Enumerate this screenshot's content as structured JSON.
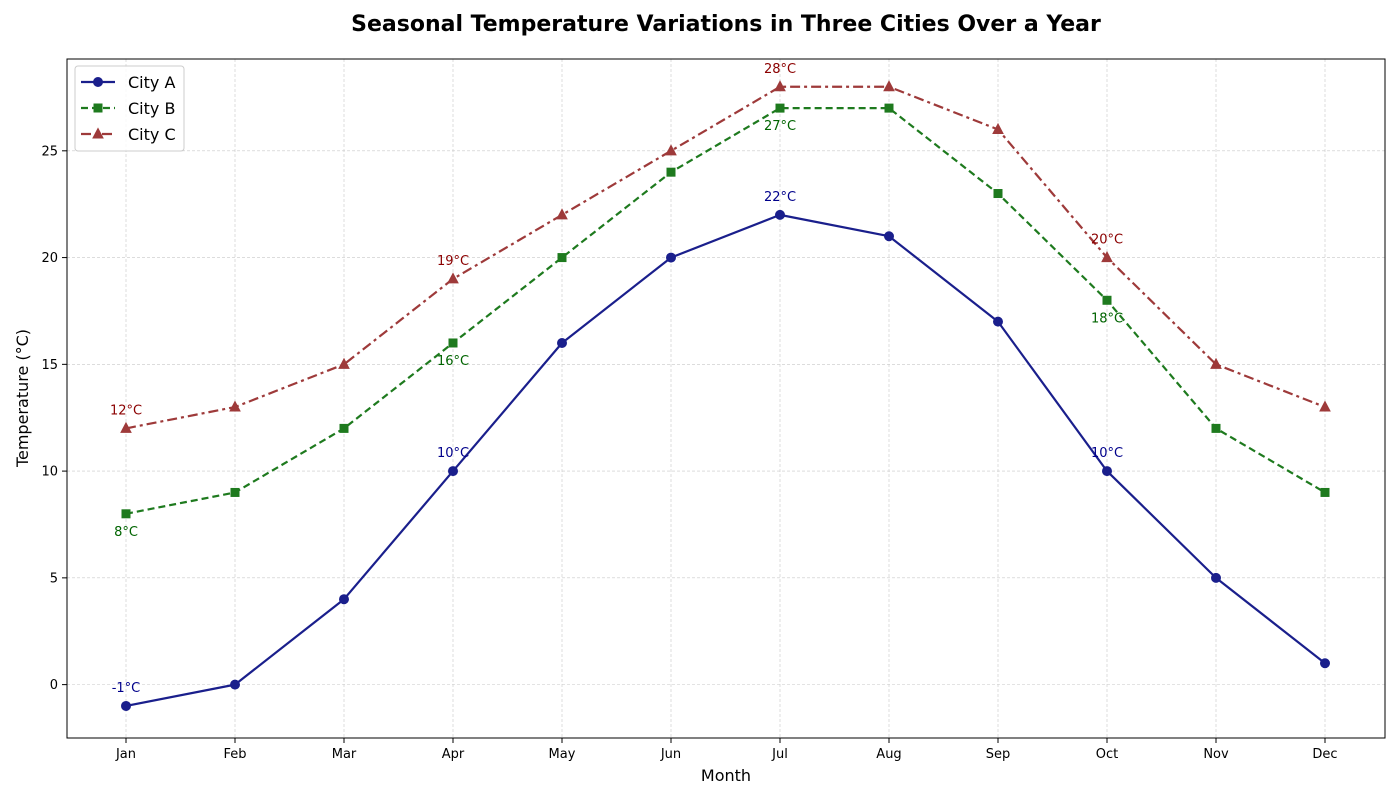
{
  "chart_data": {
    "type": "line",
    "title": "Seasonal Temperature Variations in Three Cities Over a Year",
    "xlabel": "Month",
    "ylabel": "Temperature (°C)",
    "categories": [
      "Jan",
      "Feb",
      "Mar",
      "Apr",
      "May",
      "Jun",
      "Jul",
      "Aug",
      "Sep",
      "Oct",
      "Nov",
      "Dec"
    ],
    "ylim": [
      -2.5,
      29.3
    ],
    "yticks": [
      0,
      5,
      10,
      15,
      20,
      25
    ],
    "grid": true,
    "legend_position": "top-left",
    "series": [
      {
        "name": "City A",
        "values": [
          -1,
          0,
          4,
          10,
          16,
          20,
          22,
          21,
          17,
          10,
          5,
          1
        ],
        "color": "#1a1f8c",
        "line_style": "solid",
        "marker": "circle",
        "annotation_color": "#00008b",
        "annotations": [
          {
            "index": 0,
            "text": "-1°C",
            "placement": "above"
          },
          {
            "index": 3,
            "text": "10°C",
            "placement": "above"
          },
          {
            "index": 6,
            "text": "22°C",
            "placement": "above"
          },
          {
            "index": 9,
            "text": "10°C",
            "placement": "above"
          }
        ]
      },
      {
        "name": "City B",
        "values": [
          8,
          9,
          12,
          16,
          20,
          24,
          27,
          27,
          23,
          18,
          12,
          9
        ],
        "color": "#1e7a1e",
        "line_style": "dashed",
        "marker": "square",
        "annotation_color": "#006400",
        "annotations": [
          {
            "index": 0,
            "text": "8°C",
            "placement": "below"
          },
          {
            "index": 3,
            "text": "16°C",
            "placement": "below"
          },
          {
            "index": 6,
            "text": "27°C",
            "placement": "below"
          },
          {
            "index": 9,
            "text": "18°C",
            "placement": "below"
          }
        ]
      },
      {
        "name": "City C",
        "values": [
          12,
          13,
          15,
          19,
          22,
          25,
          28,
          28,
          26,
          20,
          15,
          13
        ],
        "color": "#9e3a3a",
        "line_style": "dashdot",
        "marker": "triangle",
        "annotation_color": "#8b0000",
        "annotations": [
          {
            "index": 0,
            "text": "12°C",
            "placement": "above"
          },
          {
            "index": 3,
            "text": "19°C",
            "placement": "above"
          },
          {
            "index": 6,
            "text": "28°C",
            "placement": "above"
          },
          {
            "index": 9,
            "text": "20°C",
            "placement": "above"
          }
        ]
      }
    ]
  }
}
